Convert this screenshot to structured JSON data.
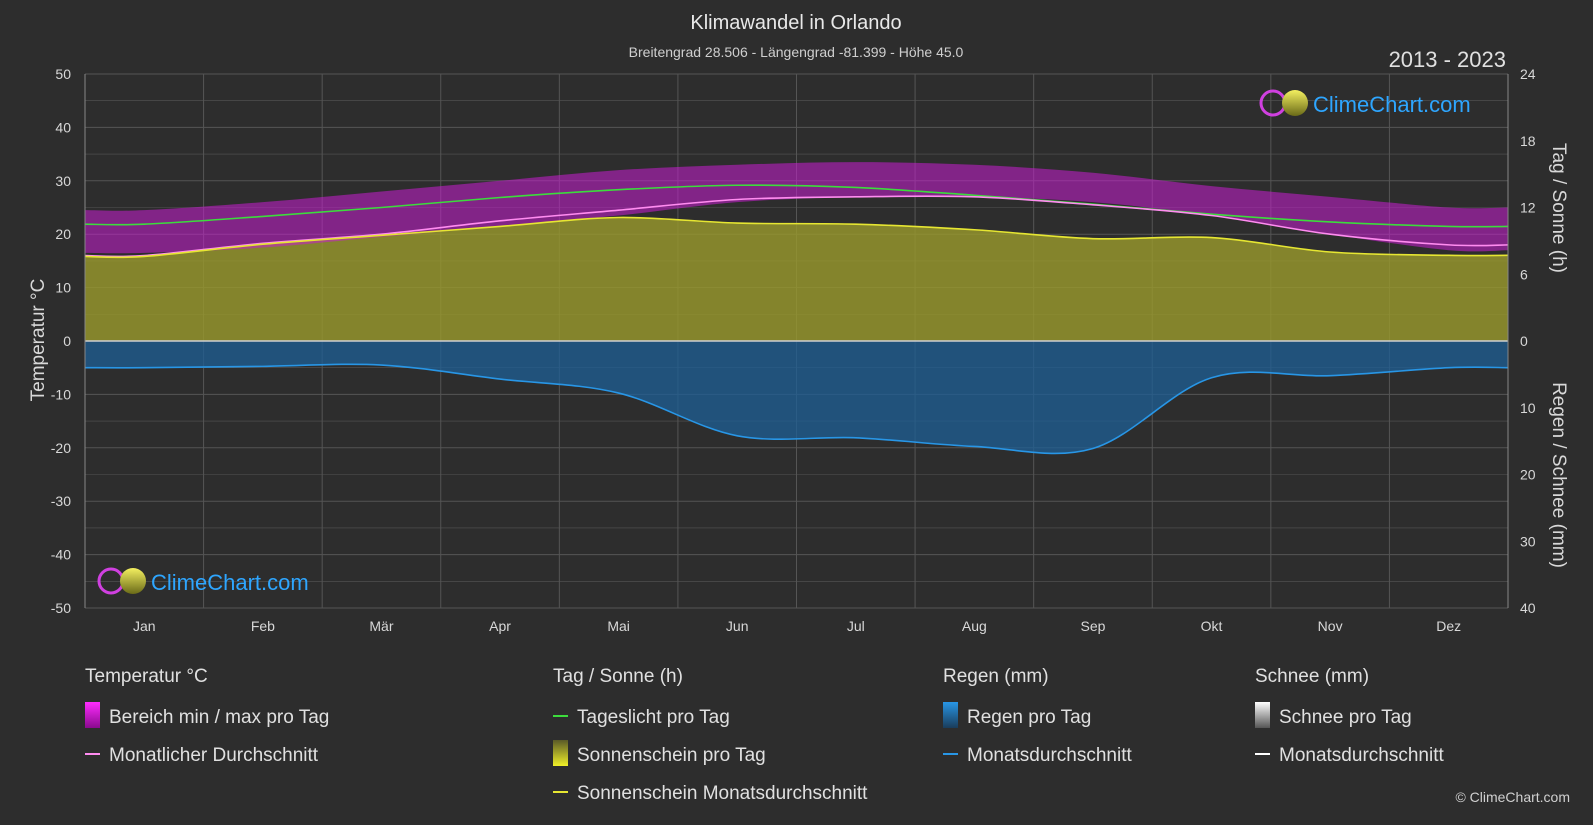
{
  "header": {
    "title": "Klimawandel in Orlando",
    "subtitle": "Breitengrad 28.506 - Längengrad -81.399 - Höhe 45.0",
    "period": "2013 - 2023"
  },
  "branding": {
    "logo_text": "ClimeChart.com",
    "copyright": "© ClimeChart.com"
  },
  "colors": {
    "background": "#2d2d2d",
    "temp_range": "#c81ed2",
    "temp_avg": "#ff8cf0",
    "daylight": "#3cdc3c",
    "sunshine_fill": "#9a9a2c",
    "sunshine_avg": "#e6e632",
    "rain_fill": "#1e5f96",
    "rain_avg": "#2896e6",
    "snow_avg": "#ffffff",
    "brand": "#2ea6ff"
  },
  "chart_data": {
    "type": "area",
    "x_unit": "month",
    "categories": [
      "Jan",
      "Feb",
      "Mär",
      "Apr",
      "Mai",
      "Jun",
      "Jul",
      "Aug",
      "Sep",
      "Okt",
      "Nov",
      "Dez"
    ],
    "left_axis": {
      "label": "Temperatur °C",
      "min": -50,
      "max": 50,
      "ticks": [
        50,
        40,
        30,
        20,
        10,
        0,
        -10,
        -20,
        -30,
        -40,
        -50
      ]
    },
    "right_axis_top": {
      "label": "Tag / Sonne (h)",
      "min": 0,
      "max": 24,
      "ticks": [
        24,
        18,
        12,
        6,
        0
      ]
    },
    "right_axis_bottom": {
      "label": "Regen / Schnee (mm)",
      "min": 0,
      "max": 40,
      "ticks": [
        0,
        10,
        20,
        30,
        40
      ]
    },
    "grid": true,
    "series": [
      {
        "name": "Bereich min / max pro Tag",
        "axis": "temp",
        "kind": "band",
        "low": [
          16.5,
          17.5,
          19.5,
          21.5,
          23.5,
          26,
          27,
          27,
          26,
          23.5,
          20,
          17
        ],
        "high": [
          24.5,
          26,
          28,
          30,
          32,
          33,
          33.5,
          33,
          31.5,
          29,
          27,
          25
        ]
      },
      {
        "name": "Monatlicher Durchschnitt",
        "axis": "temp",
        "kind": "line",
        "values": [
          16,
          18.3,
          20,
          22.5,
          24.5,
          26.5,
          27,
          27,
          25.5,
          23.5,
          20,
          18
        ]
      },
      {
        "name": "Tageslicht pro Tag",
        "axis": "sun",
        "kind": "line",
        "values": [
          10.5,
          11.2,
          12,
          12.9,
          13.6,
          14,
          13.8,
          13.1,
          12.3,
          11.4,
          10.7,
          10.3
        ]
      },
      {
        "name": "Sonnenschein Monatsdurchschnitt",
        "axis": "sun",
        "kind": "line_fill",
        "values": [
          7.6,
          8.7,
          9.5,
          10.3,
          11.1,
          10.6,
          10.5,
          10,
          9.2,
          9.3,
          8,
          7.7
        ]
      },
      {
        "name": "Monatsdurchschnitt",
        "axis": "rain",
        "kind": "line_fill",
        "values": [
          4,
          3.8,
          3.6,
          5.7,
          7.8,
          14.2,
          14.5,
          15.8,
          16.1,
          5.5,
          5.2,
          4
        ]
      },
      {
        "name": "Monatsdurchschnitt Schnee",
        "axis": "rain",
        "kind": "line",
        "values": [
          0,
          0,
          0,
          0,
          0,
          0,
          0,
          0,
          0,
          0,
          0,
          0
        ]
      }
    ]
  },
  "legend": {
    "groups": [
      {
        "title": "Temperatur °C",
        "items": [
          {
            "label": "Bereich min / max pro Tag",
            "swatch": "range"
          },
          {
            "label": "Monatlicher Durchschnitt",
            "swatch": "line-pink"
          }
        ]
      },
      {
        "title": "Tag / Sonne (h)",
        "items": [
          {
            "label": "Tageslicht pro Tag",
            "swatch": "line-green"
          },
          {
            "label": "Sonnenschein pro Tag",
            "swatch": "sun-box"
          },
          {
            "label": "Sonnenschein Monatsdurchschnitt",
            "swatch": "line-yellow"
          }
        ]
      },
      {
        "title": "Regen (mm)",
        "items": [
          {
            "label": "Regen pro Tag",
            "swatch": "rain-box"
          },
          {
            "label": "Monatsdurchschnitt",
            "swatch": "line-blue"
          }
        ]
      },
      {
        "title": "Schnee (mm)",
        "items": [
          {
            "label": "Schnee pro Tag",
            "swatch": "snow-box"
          },
          {
            "label": "Monatsdurchschnitt",
            "swatch": "line-white"
          }
        ]
      }
    ]
  }
}
